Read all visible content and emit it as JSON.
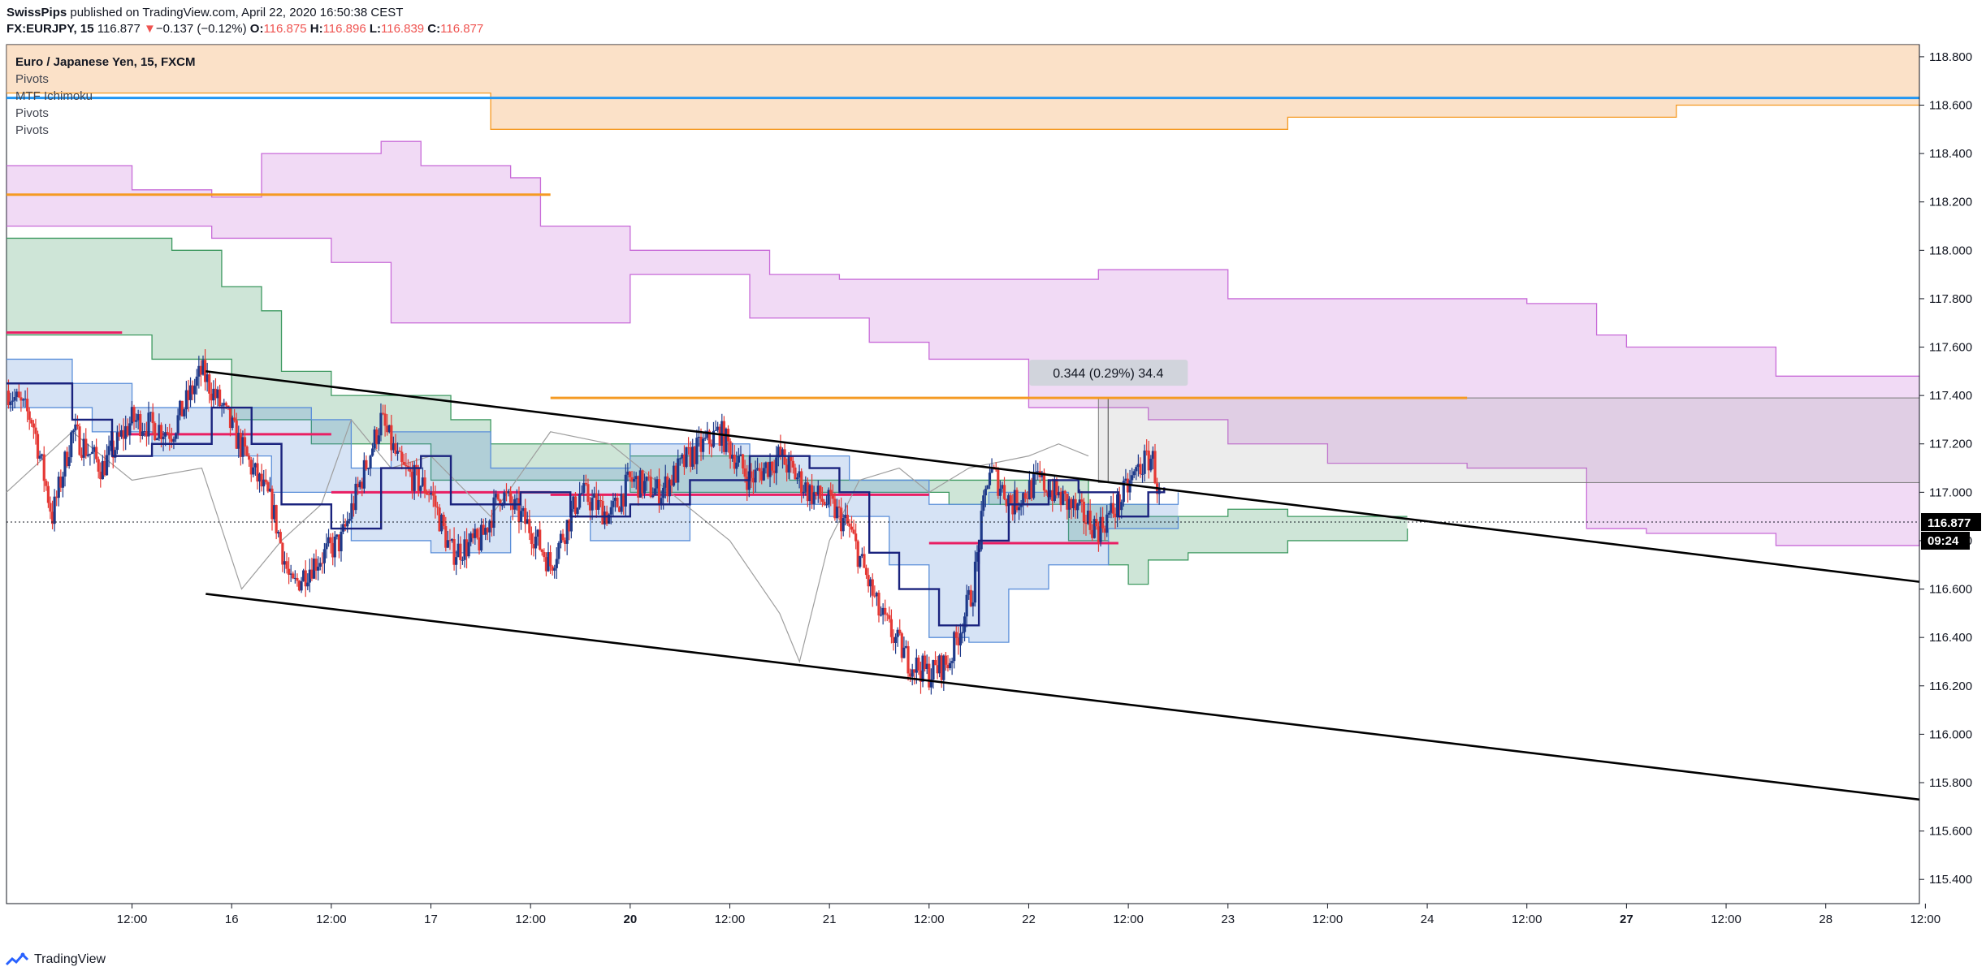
{
  "header": {
    "author": "SwissPips",
    "published": "published on TradingView.com, April 22, 2020 16:50:38 CEST",
    "symbol": "FX:EURJPY, 15",
    "last": "116.877",
    "change_arrow": "▼",
    "change": "−0.137 (−0.12%)",
    "o_label": "O:",
    "o_value": "116.875",
    "h_label": "H:",
    "h_value": "116.896",
    "l_label": "L:",
    "l_value": "116.839",
    "c_label": "C:",
    "c_value": "116.877"
  },
  "legend": [
    "Euro / Japanese Yen, 15, FXCM",
    "Pivots",
    "MTF Ichimoku",
    "Pivots",
    "Pivots"
  ],
  "footer": {
    "brand": "TradingView"
  },
  "colors": {
    "up": "#1e3a8a",
    "down": "#e53935",
    "trendline": "#000000",
    "pivot_orange": "#f59a23",
    "pivot_red": "#e91e63",
    "pivot_blue": "#2196f3",
    "cloud_purple": "#c86bd8",
    "cloud_green": "#3d9960",
    "cloud_blue": "#5b8fd9",
    "kijun": "#1a237e",
    "chikou": "#9e9e9e",
    "top_band": "#f8c99b",
    "last_price_bg": "#000000"
  },
  "chart_data": {
    "type": "candlestick",
    "instrument": "EURJPY",
    "timeframe": "15",
    "ylim": [
      115.3,
      118.85
    ],
    "y_ticks": [
      "118.800",
      "118.600",
      "118.400",
      "118.200",
      "118.000",
      "117.800",
      "117.600",
      "117.400",
      "117.200",
      "117.000",
      "116.800",
      "116.600",
      "116.400",
      "116.200",
      "116.000",
      "115.800",
      "115.600",
      "115.400"
    ],
    "x_ticks": [
      {
        "label": "12:00",
        "t": 0.5,
        "bold": false
      },
      {
        "label": "16",
        "t": 1.0,
        "bold": false
      },
      {
        "label": "12:00",
        "t": 1.5,
        "bold": false
      },
      {
        "label": "17",
        "t": 2.0,
        "bold": false
      },
      {
        "label": "12:00",
        "t": 2.5,
        "bold": false
      },
      {
        "label": "20",
        "t": 3.0,
        "bold": true
      },
      {
        "label": "12:00",
        "t": 3.5,
        "bold": false
      },
      {
        "label": "21",
        "t": 4.0,
        "bold": false
      },
      {
        "label": "12:00",
        "t": 4.5,
        "bold": false
      },
      {
        "label": "22",
        "t": 5.0,
        "bold": false
      },
      {
        "label": "12:00",
        "t": 5.5,
        "bold": false
      },
      {
        "label": "23",
        "t": 6.0,
        "bold": false
      },
      {
        "label": "12:00",
        "t": 6.5,
        "bold": false
      },
      {
        "label": "24",
        "t": 7.0,
        "bold": false
      },
      {
        "label": "12:00",
        "t": 7.5,
        "bold": false
      },
      {
        "label": "27",
        "t": 8.0,
        "bold": true
      },
      {
        "label": "12:00",
        "t": 8.5,
        "bold": false
      },
      {
        "label": "28",
        "t": 9.0,
        "bold": false
      },
      {
        "label": "12:00",
        "t": 9.5,
        "bold": false
      }
    ],
    "t_range": [
      -0.13,
      9.47
    ],
    "price_path": [
      [
        -0.12,
        117.42
      ],
      [
        0.0,
        117.3
      ],
      [
        0.1,
        116.9
      ],
      [
        0.2,
        117.25
      ],
      [
        0.35,
        117.1
      ],
      [
        0.5,
        117.3
      ],
      [
        0.7,
        117.25
      ],
      [
        0.85,
        117.5
      ],
      [
        0.95,
        117.35
      ],
      [
        1.1,
        117.1
      ],
      [
        1.2,
        116.95
      ],
      [
        1.3,
        116.6
      ],
      [
        1.4,
        116.7
      ],
      [
        1.55,
        116.8
      ],
      [
        1.75,
        117.3
      ],
      [
        1.85,
        117.1
      ],
      [
        2.0,
        117.0
      ],
      [
        2.1,
        116.75
      ],
      [
        2.25,
        116.8
      ],
      [
        2.35,
        117.0
      ],
      [
        2.5,
        116.85
      ],
      [
        2.6,
        116.7
      ],
      [
        2.75,
        117.0
      ],
      [
        2.9,
        116.9
      ],
      [
        3.0,
        117.05
      ],
      [
        3.15,
        117.0
      ],
      [
        3.3,
        117.15
      ],
      [
        3.45,
        117.25
      ],
      [
        3.6,
        117.05
      ],
      [
        3.75,
        117.15
      ],
      [
        3.9,
        117.0
      ],
      [
        4.0,
        116.95
      ],
      [
        4.1,
        116.85
      ],
      [
        4.25,
        116.5
      ],
      [
        4.4,
        116.3
      ],
      [
        4.5,
        116.25
      ],
      [
        4.6,
        116.3
      ],
      [
        4.72,
        116.6
      ],
      [
        4.8,
        117.1
      ],
      [
        4.92,
        116.95
      ],
      [
        5.05,
        117.05
      ],
      [
        5.2,
        116.95
      ],
      [
        5.35,
        116.85
      ],
      [
        5.45,
        116.95
      ],
      [
        5.55,
        117.1
      ],
      [
        5.62,
        117.15
      ],
      [
        5.66,
        116.95
      ]
    ],
    "last_price": 116.877,
    "countdown": "09:24",
    "trendlines": [
      {
        "t1": 0.87,
        "y1": 117.5,
        "t2": 9.47,
        "y2": 116.63
      },
      {
        "t1": 0.87,
        "y1": 116.58,
        "t2": 9.47,
        "y2": 115.73
      }
    ],
    "pivot_levels": [
      {
        "color": "pivot_orange",
        "t1": -0.13,
        "t2": 2.6,
        "y": 118.23
      },
      {
        "color": "pivot_orange",
        "t1": 2.6,
        "t2": 7.2,
        "y": 117.39
      },
      {
        "color": "pivot_blue",
        "t1": -0.13,
        "t2": 9.47,
        "y": 118.63
      },
      {
        "color": "pivot_red",
        "t1": -0.13,
        "t2": 0.45,
        "y": 117.66
      },
      {
        "color": "pivot_red",
        "t1": 0.45,
        "t2": 1.5,
        "y": 117.24
      },
      {
        "color": "pivot_red",
        "t1": 1.5,
        "t2": 2.6,
        "y": 117.0
      },
      {
        "color": "pivot_red",
        "t1": 2.6,
        "t2": 4.5,
        "y": 116.99
      },
      {
        "color": "pivot_red",
        "t1": 4.5,
        "t2": 5.45,
        "y": 116.79
      }
    ],
    "measure": {
      "label": "0.344 (0.29%) 34.4",
      "t1": 5.35,
      "t2": 9.47,
      "y1": 117.04,
      "y2": 117.39
    },
    "top_band": {
      "upper": 118.85,
      "steps": [
        [
          -0.13,
          118.65
        ],
        [
          2.2,
          118.65
        ],
        [
          2.3,
          118.5
        ],
        [
          6.2,
          118.5
        ],
        [
          6.3,
          118.55
        ],
        [
          8.2,
          118.55
        ],
        [
          8.25,
          118.6
        ],
        [
          9.47,
          118.6
        ]
      ]
    },
    "cloud_purple_steps": {
      "upper": [
        [
          -0.13,
          118.35
        ],
        [
          0.5,
          118.25
        ],
        [
          0.9,
          118.22
        ],
        [
          1.15,
          118.4
        ],
        [
          1.75,
          118.45
        ],
        [
          1.95,
          118.35
        ],
        [
          2.4,
          118.3
        ],
        [
          2.55,
          118.1
        ],
        [
          3.0,
          118.0
        ],
        [
          3.5,
          118.0
        ],
        [
          3.7,
          117.9
        ],
        [
          4.05,
          117.88
        ],
        [
          5.35,
          117.92
        ],
        [
          6.0,
          117.8
        ],
        [
          7.5,
          117.78
        ],
        [
          7.85,
          117.65
        ],
        [
          8.0,
          117.6
        ],
        [
          8.75,
          117.48
        ],
        [
          9.47,
          117.48
        ]
      ],
      "lower": [
        [
          -0.13,
          118.1
        ],
        [
          0.5,
          118.1
        ],
        [
          0.9,
          118.05
        ],
        [
          1.5,
          117.95
        ],
        [
          1.8,
          117.7
        ],
        [
          2.5,
          117.7
        ],
        [
          3.0,
          117.9
        ],
        [
          3.6,
          117.72
        ],
        [
          4.2,
          117.62
        ],
        [
          4.5,
          117.55
        ],
        [
          5.0,
          117.35
        ],
        [
          5.6,
          117.3
        ],
        [
          6.0,
          117.2
        ],
        [
          6.5,
          117.12
        ],
        [
          7.2,
          117.1
        ],
        [
          7.8,
          116.85
        ],
        [
          8.1,
          116.83
        ],
        [
          8.75,
          116.78
        ],
        [
          9.47,
          116.8
        ]
      ]
    },
    "cloud_green_steps": {
      "upper": [
        [
          -0.13,
          118.05
        ],
        [
          0.7,
          118.0
        ],
        [
          0.95,
          117.85
        ],
        [
          1.15,
          117.75
        ],
        [
          1.25,
          117.5
        ],
        [
          1.5,
          117.4
        ],
        [
          1.95,
          117.4
        ],
        [
          2.1,
          117.3
        ],
        [
          2.3,
          117.2
        ],
        [
          3.0,
          117.15
        ],
        [
          3.8,
          117.05
        ],
        [
          5.0,
          117.05
        ],
        [
          5.3,
          116.95
        ],
        [
          5.6,
          116.9
        ],
        [
          5.8,
          116.9
        ],
        [
          6.0,
          116.93
        ],
        [
          6.3,
          116.9
        ],
        [
          6.9,
          116.9
        ]
      ],
      "lower": [
        [
          -0.13,
          117.65
        ],
        [
          0.6,
          117.55
        ],
        [
          1.0,
          117.3
        ],
        [
          1.4,
          117.2
        ],
        [
          2.0,
          117.05
        ],
        [
          3.0,
          117.0
        ],
        [
          4.0,
          117.0
        ],
        [
          4.6,
          116.95
        ],
        [
          5.2,
          116.8
        ],
        [
          5.4,
          116.7
        ],
        [
          5.5,
          116.62
        ],
        [
          5.6,
          116.72
        ],
        [
          5.8,
          116.75
        ],
        [
          6.3,
          116.8
        ],
        [
          6.9,
          116.85
        ]
      ]
    },
    "cloud_blue_steps": {
      "upper": [
        [
          -0.13,
          117.55
        ],
        [
          0.2,
          117.45
        ],
        [
          0.5,
          117.35
        ],
        [
          1.0,
          117.35
        ],
        [
          1.4,
          117.3
        ],
        [
          1.6,
          117.1
        ],
        [
          1.8,
          117.25
        ],
        [
          2.3,
          117.1
        ],
        [
          3.0,
          117.2
        ],
        [
          3.6,
          117.15
        ],
        [
          4.1,
          117.05
        ],
        [
          4.5,
          116.95
        ],
        [
          4.8,
          117.0
        ],
        [
          5.2,
          116.95
        ],
        [
          5.6,
          116.95
        ],
        [
          5.75,
          117.0
        ]
      ],
      "lower": [
        [
          -0.13,
          117.35
        ],
        [
          0.3,
          117.25
        ],
        [
          0.6,
          117.15
        ],
        [
          1.2,
          117.0
        ],
        [
          1.6,
          116.8
        ],
        [
          2.0,
          116.75
        ],
        [
          2.4,
          116.9
        ],
        [
          2.8,
          116.8
        ],
        [
          3.3,
          116.95
        ],
        [
          4.0,
          116.9
        ],
        [
          4.3,
          116.7
        ],
        [
          4.5,
          116.4
        ],
        [
          4.7,
          116.38
        ],
        [
          4.9,
          116.6
        ],
        [
          5.1,
          116.7
        ],
        [
          5.4,
          116.85
        ],
        [
          5.75,
          116.9
        ]
      ]
    },
    "kijun_path": [
      [
        -0.13,
        117.45
      ],
      [
        0.2,
        117.3
      ],
      [
        0.4,
        117.15
      ],
      [
        0.6,
        117.2
      ],
      [
        0.9,
        117.35
      ],
      [
        1.1,
        117.2
      ],
      [
        1.25,
        116.95
      ],
      [
        1.5,
        116.85
      ],
      [
        1.75,
        117.1
      ],
      [
        1.95,
        117.15
      ],
      [
        2.1,
        116.95
      ],
      [
        2.45,
        117.0
      ],
      [
        2.7,
        116.9
      ],
      [
        3.0,
        116.95
      ],
      [
        3.3,
        117.05
      ],
      [
        3.6,
        117.15
      ],
      [
        3.9,
        117.1
      ],
      [
        4.05,
        117.0
      ],
      [
        4.2,
        116.75
      ],
      [
        4.35,
        116.6
      ],
      [
        4.55,
        116.45
      ],
      [
        4.75,
        116.8
      ],
      [
        4.9,
        116.95
      ],
      [
        5.1,
        117.05
      ],
      [
        5.25,
        117.0
      ],
      [
        5.45,
        116.9
      ],
      [
        5.6,
        117.0
      ],
      [
        5.68,
        117.02
      ]
    ],
    "chikou_path": [
      [
        -0.13,
        117.0
      ],
      [
        0.2,
        117.25
      ],
      [
        0.5,
        117.05
      ],
      [
        0.85,
        117.1
      ],
      [
        1.05,
        116.6
      ],
      [
        1.25,
        116.8
      ],
      [
        1.45,
        116.95
      ],
      [
        1.6,
        117.3
      ],
      [
        1.8,
        117.1
      ],
      [
        2.0,
        117.15
      ],
      [
        2.3,
        116.9
      ],
      [
        2.6,
        117.25
      ],
      [
        2.9,
        117.2
      ],
      [
        3.2,
        117.0
      ],
      [
        3.5,
        116.8
      ],
      [
        3.75,
        116.5
      ],
      [
        3.85,
        116.3
      ],
      [
        4.0,
        116.8
      ],
      [
        4.15,
        117.05
      ],
      [
        4.35,
        117.1
      ],
      [
        4.5,
        117.0
      ],
      [
        4.7,
        117.1
      ],
      [
        5.0,
        117.15
      ],
      [
        5.15,
        117.2
      ],
      [
        5.3,
        117.15
      ]
    ]
  }
}
